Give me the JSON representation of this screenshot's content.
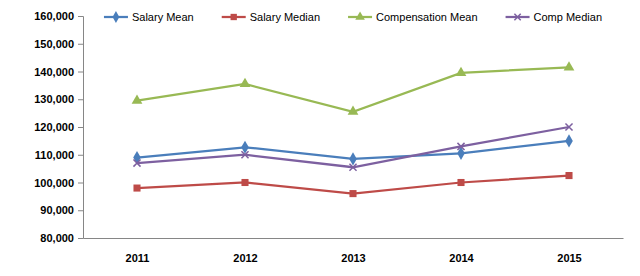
{
  "chart_data": {
    "type": "line",
    "categories": [
      "2011",
      "2012",
      "2013",
      "2014",
      "2015"
    ],
    "series": [
      {
        "name": "Salary Mean",
        "color": "#4a7ebb",
        "marker": "diamond",
        "values": [
          109000,
          112700,
          108500,
          110500,
          115000
        ]
      },
      {
        "name": "Salary Median",
        "color": "#be4b48",
        "marker": "square",
        "values": [
          98000,
          100000,
          96000,
          100000,
          102500
        ]
      },
      {
        "name": "Compensation Mean",
        "color": "#98b954",
        "marker": "triangle",
        "values": [
          129500,
          135500,
          125500,
          139500,
          141500
        ]
      },
      {
        "name": "Comp Median",
        "color": "#7d60a0",
        "marker": "x",
        "values": [
          107000,
          110000,
          105500,
          113000,
          120000
        ]
      }
    ],
    "ylim": [
      80000,
      160000
    ],
    "yticks": [
      {
        "value": 80000,
        "label": "80,000"
      },
      {
        "value": 90000,
        "label": "90,000"
      },
      {
        "value": 100000,
        "label": "100,000"
      },
      {
        "value": 110000,
        "label": "110,000"
      },
      {
        "value": 120000,
        "label": "120,000"
      },
      {
        "value": 130000,
        "label": "130,000"
      },
      {
        "value": 140000,
        "label": "140,000"
      },
      {
        "value": 150000,
        "label": "150,000"
      },
      {
        "value": 160000,
        "label": "160,000"
      }
    ],
    "grid": false,
    "legend": "top"
  }
}
